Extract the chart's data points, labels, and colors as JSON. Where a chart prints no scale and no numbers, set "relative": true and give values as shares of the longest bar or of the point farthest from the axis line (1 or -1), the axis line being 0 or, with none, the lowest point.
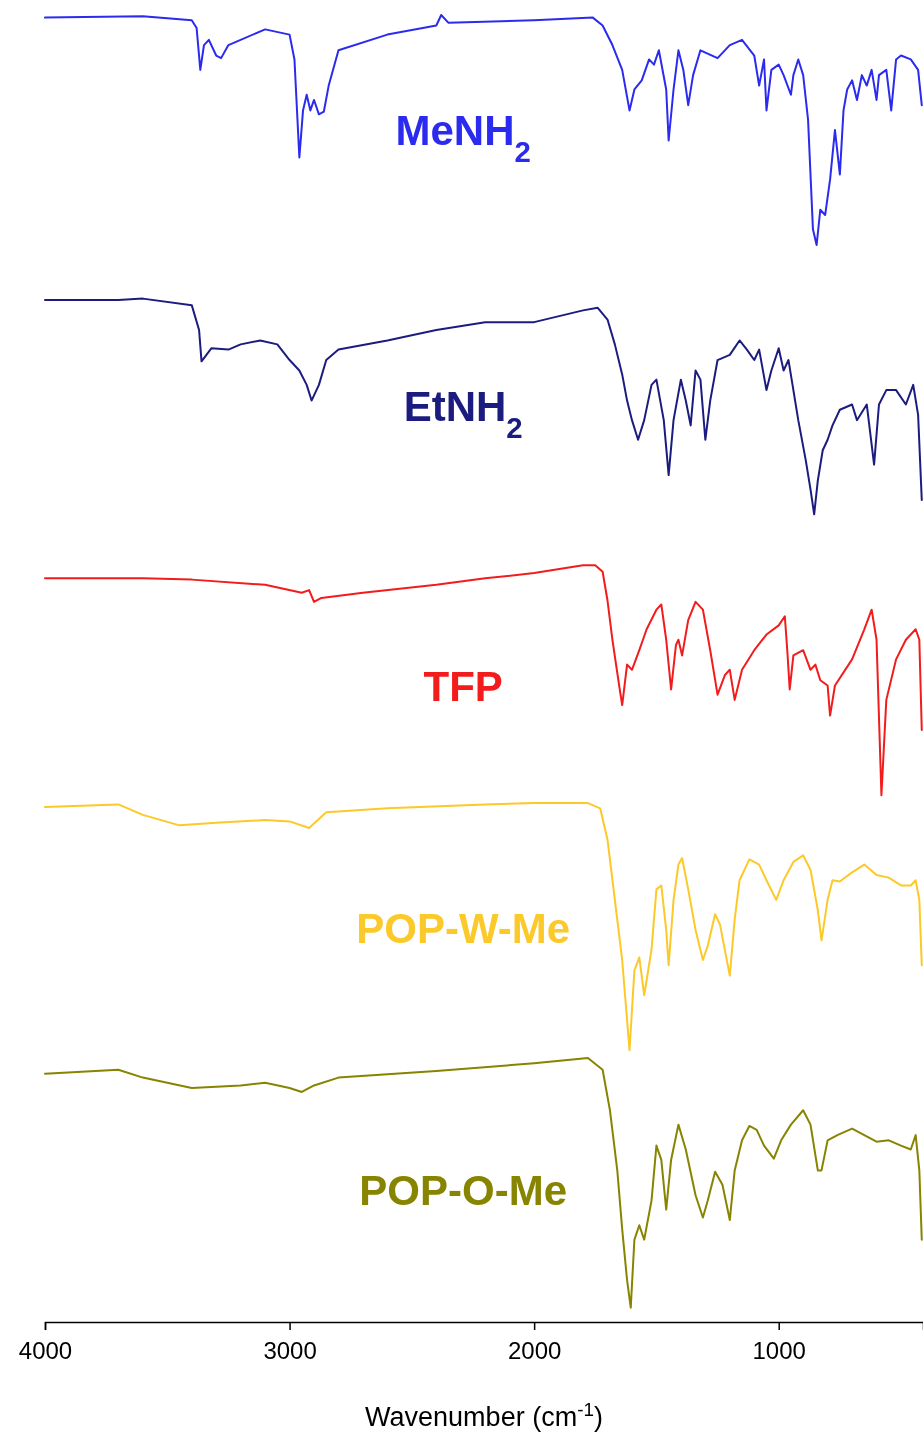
{
  "chart_data": {
    "type": "line",
    "relative": true,
    "xlabel": "Wavenumber (cm$^{-1}$)",
    "xlim": [
      4000,
      410
    ],
    "xticks": [
      4000,
      3000,
      2000,
      1000
    ],
    "grid": false,
    "legend": false,
    "marker": "none",
    "line_style": "solid",
    "series": [
      {
        "name": "MeNH$_{2}$",
        "color": "#2b2bef",
        "x": [
          4000,
          3600,
          3400,
          3380,
          3365,
          3350,
          3330,
          3300,
          3280,
          3250,
          3100,
          3000,
          2980,
          2960,
          2945,
          2930,
          2915,
          2900,
          2880,
          2860,
          2840,
          2800,
          2600,
          2400,
          2380,
          2350,
          2000,
          1760,
          1720,
          1680,
          1640,
          1610,
          1590,
          1560,
          1530,
          1510,
          1490,
          1460,
          1450,
          1430,
          1410,
          1390,
          1370,
          1350,
          1320,
          1250,
          1200,
          1150,
          1100,
          1080,
          1060,
          1050,
          1030,
          1000,
          980,
          950,
          940,
          920,
          900,
          880,
          860,
          845,
          830,
          810,
          790,
          770,
          750,
          735,
          720,
          700,
          680,
          660,
          640,
          620,
          600,
          590,
          560,
          540,
          520,
          500,
          460,
          430,
          415
        ],
        "values": [
          0.998,
          0.999,
          0.996,
          0.99,
          0.958,
          0.977,
          0.981,
          0.969,
          0.967,
          0.977,
          0.989,
          0.985,
          0.966,
          0.891,
          0.927,
          0.939,
          0.927,
          0.935,
          0.924,
          0.926,
          0.946,
          0.973,
          0.985,
          0.992,
          1.0,
          0.994,
          0.996,
          0.998,
          0.992,
          0.977,
          0.958,
          0.927,
          0.943,
          0.95,
          0.966,
          0.962,
          0.973,
          0.943,
          0.904,
          0.943,
          0.973,
          0.958,
          0.931,
          0.954,
          0.973,
          0.967,
          0.977,
          0.981,
          0.969,
          0.946,
          0.966,
          0.927,
          0.958,
          0.962,
          0.954,
          0.939,
          0.954,
          0.966,
          0.954,
          0.92,
          0.836,
          0.824,
          0.851,
          0.847,
          0.874,
          0.912,
          0.878,
          0.927,
          0.943,
          0.95,
          0.935,
          0.954,
          0.946,
          0.958,
          0.935,
          0.954,
          0.958,
          0.927,
          0.966,
          0.969,
          0.966,
          0.958,
          0.931
        ]
      },
      {
        "name": "EtNH$_{2}$",
        "color": "#1c1c80",
        "x": [
          4000,
          3700,
          3600,
          3400,
          3370,
          3360,
          3340,
          3320,
          3250,
          3200,
          3120,
          3050,
          3000,
          2960,
          2930,
          2910,
          2880,
          2850,
          2800,
          2600,
          2400,
          2200,
          2000,
          1800,
          1740,
          1700,
          1670,
          1640,
          1620,
          1600,
          1575,
          1550,
          1520,
          1500,
          1470,
          1450,
          1430,
          1400,
          1380,
          1360,
          1340,
          1320,
          1300,
          1280,
          1250,
          1200,
          1160,
          1130,
          1100,
          1080,
          1050,
          1030,
          1000,
          980,
          960,
          940,
          920,
          890,
          870,
          855,
          840,
          820,
          800,
          780,
          750,
          700,
          680,
          640,
          610,
          590,
          560,
          520,
          480,
          450,
          430,
          415
        ],
        "values": [
          0.782,
          0.782,
          0.783,
          0.778,
          0.759,
          0.735,
          0.74,
          0.745,
          0.744,
          0.748,
          0.751,
          0.748,
          0.736,
          0.728,
          0.717,
          0.705,
          0.717,
          0.736,
          0.744,
          0.751,
          0.759,
          0.765,
          0.765,
          0.774,
          0.776,
          0.767,
          0.748,
          0.725,
          0.705,
          0.69,
          0.675,
          0.69,
          0.717,
          0.721,
          0.69,
          0.648,
          0.69,
          0.721,
          0.705,
          0.686,
          0.728,
          0.721,
          0.675,
          0.705,
          0.736,
          0.74,
          0.751,
          0.744,
          0.736,
          0.744,
          0.713,
          0.728,
          0.745,
          0.728,
          0.736,
          0.713,
          0.69,
          0.66,
          0.637,
          0.618,
          0.644,
          0.667,
          0.675,
          0.686,
          0.698,
          0.702,
          0.69,
          0.702,
          0.656,
          0.702,
          0.713,
          0.713,
          0.702,
          0.717,
          0.694,
          0.629
        ]
      },
      {
        "name": "TFP",
        "color": "#f21c1c",
        "x": [
          4000,
          3600,
          3400,
          3100,
          2950,
          2920,
          2900,
          2870,
          2700,
          2400,
          2200,
          2000,
          1800,
          1750,
          1720,
          1700,
          1680,
          1650,
          1640,
          1620,
          1600,
          1570,
          1540,
          1500,
          1480,
          1460,
          1440,
          1420,
          1410,
          1395,
          1370,
          1340,
          1310,
          1280,
          1250,
          1220,
          1200,
          1180,
          1150,
          1100,
          1050,
          1000,
          975,
          965,
          955,
          940,
          900,
          870,
          850,
          830,
          800,
          790,
          770,
          700,
          650,
          620,
          600,
          580,
          560,
          520,
          480,
          440,
          425,
          415
        ],
        "values": [
          0.569,
          0.569,
          0.568,
          0.564,
          0.558,
          0.56,
          0.551,
          0.554,
          0.558,
          0.564,
          0.569,
          0.573,
          0.579,
          0.579,
          0.574,
          0.552,
          0.522,
          0.484,
          0.472,
          0.503,
          0.499,
          0.514,
          0.53,
          0.545,
          0.549,
          0.522,
          0.484,
          0.518,
          0.522,
          0.51,
          0.537,
          0.551,
          0.545,
          0.514,
          0.48,
          0.495,
          0.499,
          0.476,
          0.499,
          0.514,
          0.526,
          0.533,
          0.54,
          0.514,
          0.484,
          0.51,
          0.514,
          0.499,
          0.503,
          0.491,
          0.487,
          0.464,
          0.487,
          0.507,
          0.53,
          0.545,
          0.522,
          0.403,
          0.476,
          0.507,
          0.522,
          0.53,
          0.522,
          0.453
        ]
      },
      {
        "name": "POP-W-Me",
        "color": "#fcc92a",
        "x": [
          4000,
          3700,
          3600,
          3450,
          3300,
          3100,
          3000,
          2920,
          2850,
          2600,
          2200,
          2000,
          1780,
          1730,
          1700,
          1670,
          1640,
          1610,
          1590,
          1570,
          1550,
          1520,
          1500,
          1480,
          1460,
          1450,
          1430,
          1410,
          1395,
          1370,
          1340,
          1310,
          1290,
          1260,
          1240,
          1200,
          1180,
          1160,
          1120,
          1080,
          1050,
          1010,
          980,
          940,
          900,
          870,
          840,
          825,
          800,
          780,
          750,
          700,
          650,
          600,
          550,
          500,
          460,
          440,
          425,
          415
        ],
        "values": [
          0.394,
          0.396,
          0.388,
          0.38,
          0.382,
          0.384,
          0.383,
          0.378,
          0.39,
          0.393,
          0.396,
          0.397,
          0.397,
          0.393,
          0.369,
          0.323,
          0.277,
          0.208,
          0.269,
          0.279,
          0.25,
          0.285,
          0.331,
          0.334,
          0.3,
          0.273,
          0.323,
          0.35,
          0.355,
          0.331,
          0.3,
          0.277,
          0.288,
          0.312,
          0.304,
          0.265,
          0.308,
          0.338,
          0.354,
          0.35,
          0.338,
          0.323,
          0.338,
          0.352,
          0.357,
          0.346,
          0.315,
          0.292,
          0.323,
          0.338,
          0.337,
          0.344,
          0.35,
          0.342,
          0.34,
          0.334,
          0.334,
          0.338,
          0.323,
          0.273
        ]
      },
      {
        "name": "POP-O-Me",
        "color": "#878400",
        "x": [
          4000,
          3700,
          3600,
          3400,
          3200,
          3100,
          3000,
          2950,
          2900,
          2800,
          2400,
          2000,
          1780,
          1720,
          1690,
          1660,
          1640,
          1620,
          1605,
          1590,
          1570,
          1550,
          1520,
          1500,
          1480,
          1460,
          1440,
          1410,
          1380,
          1340,
          1310,
          1290,
          1260,
          1230,
          1200,
          1180,
          1150,
          1120,
          1090,
          1060,
          1020,
          990,
          950,
          900,
          870,
          840,
          825,
          800,
          760,
          700,
          650,
          600,
          550,
          500,
          460,
          440,
          425,
          415
        ],
        "values": [
          0.19,
          0.193,
          0.187,
          0.179,
          0.181,
          0.183,
          0.179,
          0.176,
          0.181,
          0.187,
          0.192,
          0.198,
          0.202,
          0.193,
          0.162,
          0.116,
          0.071,
          0.032,
          0.011,
          0.063,
          0.074,
          0.063,
          0.093,
          0.135,
          0.124,
          0.086,
          0.124,
          0.151,
          0.132,
          0.097,
          0.08,
          0.093,
          0.115,
          0.105,
          0.078,
          0.116,
          0.139,
          0.15,
          0.147,
          0.135,
          0.125,
          0.139,
          0.151,
          0.162,
          0.151,
          0.116,
          0.116,
          0.139,
          0.143,
          0.148,
          0.143,
          0.138,
          0.139,
          0.135,
          0.132,
          0.143,
          0.116,
          0.063
        ]
      }
    ]
  }
}
